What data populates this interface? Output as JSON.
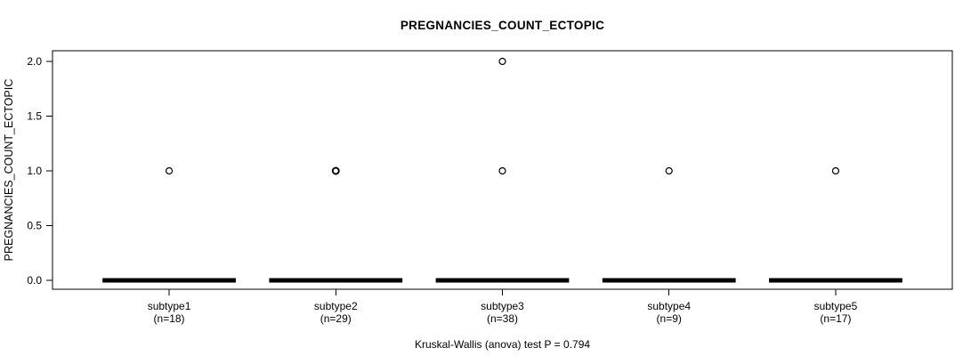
{
  "page": {
    "background": "#ffffff"
  },
  "chart_data": {
    "type": "boxplot",
    "title": "PREGNANCIES_COUNT_ECTOPIC",
    "ylabel": "PREGNANCIES_COUNT_ECTOPIC",
    "footer": "Kruskal-Wallis (anova) test P = 0.794",
    "stat_test": {
      "name": "Kruskal-Wallis (anova) test",
      "p_value": 0.794
    },
    "ylim": [
      0,
      2
    ],
    "y_ticks": [
      0,
      0.5,
      1,
      1.5,
      2
    ],
    "grid": false,
    "legend": null,
    "colors": {
      "box": "#000000",
      "text": "#000000",
      "frame": "#000000",
      "background": "#ffffff"
    },
    "groups": [
      {
        "label": "subtype1",
        "sublabel": "(n=18)",
        "n": 18,
        "median": 0,
        "q1": 0,
        "q3": 0,
        "whisker_low": 0,
        "whisker_high": 0,
        "outliers": [
          1
        ]
      },
      {
        "label": "subtype2",
        "sublabel": "(n=29)",
        "n": 29,
        "median": 0,
        "q1": 0,
        "q3": 0,
        "whisker_low": 0,
        "whisker_high": 0,
        "outliers": [
          1,
          1
        ]
      },
      {
        "label": "subtype3",
        "sublabel": "(n=38)",
        "n": 38,
        "median": 0,
        "q1": 0,
        "q3": 0,
        "whisker_low": 0,
        "whisker_high": 0,
        "outliers": [
          1,
          2
        ]
      },
      {
        "label": "subtype4",
        "sublabel": "(n=9)",
        "n": 9,
        "median": 0,
        "q1": 0,
        "q3": 0,
        "whisker_low": 0,
        "whisker_high": 0,
        "outliers": [
          1
        ]
      },
      {
        "label": "subtype5",
        "sublabel": "(n=17)",
        "n": 17,
        "median": 0,
        "q1": 0,
        "q3": 0,
        "whisker_low": 0,
        "whisker_high": 0,
        "outliers": [
          1
        ]
      }
    ]
  }
}
